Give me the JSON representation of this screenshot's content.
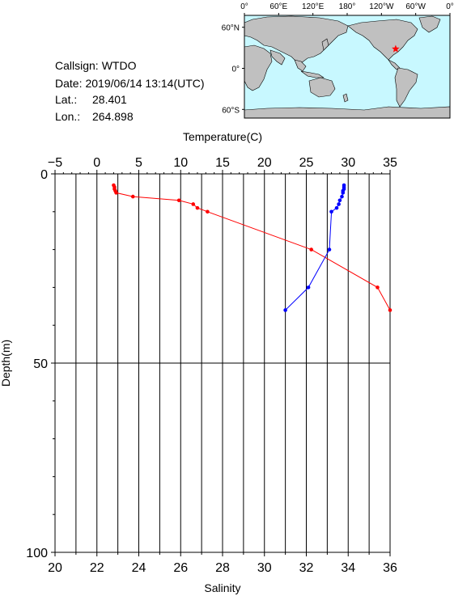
{
  "station": {
    "callsign_label": "Callsign:",
    "callsign": "WTDO",
    "date_label": "Date:",
    "date": "2019/06/14 13:14(UTC)",
    "lat_label": "Lat.:",
    "lat": "28.401",
    "lon_label": "Lon.:",
    "lon": "264.898"
  },
  "map": {
    "top_ticks": [
      "0°",
      "60°E",
      "120°E",
      "180°",
      "120°W",
      "60°W",
      "0°"
    ],
    "left_ticks": [
      "60°N",
      "0°",
      "60°S"
    ],
    "ocean_color": "#c8f8ff",
    "land_color": "#c0c0c0",
    "marker": {
      "label": "station-star",
      "lon": 264.898,
      "lat": 28.401,
      "color": "#ff0000"
    }
  },
  "chart_data": {
    "type": "line",
    "x_top": {
      "label": "Temperature(C)",
      "range": [
        -5,
        35
      ],
      "ticks": [
        "-5",
        "0",
        "5",
        "10",
        "15",
        "20",
        "25",
        "30",
        "35"
      ]
    },
    "x_bottom": {
      "label": "Salinity",
      "range": [
        20,
        36
      ],
      "ticks": [
        "20",
        "22",
        "24",
        "26",
        "28",
        "30",
        "32",
        "34",
        "36"
      ]
    },
    "y": {
      "label": "Depth(m)",
      "range": [
        0,
        100
      ],
      "inverted": true,
      "ticks": [
        "0",
        "50",
        "100"
      ]
    },
    "grid": true,
    "series": [
      {
        "axis": "temperature",
        "color": "#ff0000",
        "points": [
          [
            2.0,
            3.0
          ],
          [
            2.1,
            3.5
          ],
          [
            2.1,
            4.0
          ],
          [
            2.2,
            4.5
          ],
          [
            2.3,
            5.0
          ],
          [
            4.3,
            6.0
          ],
          [
            9.8,
            7.0
          ],
          [
            11.5,
            8.0
          ],
          [
            12.0,
            9.0
          ],
          [
            13.2,
            10.0
          ],
          [
            25.6,
            20.0
          ],
          [
            33.5,
            30.0
          ],
          [
            35.0,
            36.0
          ]
        ]
      },
      {
        "axis": "salinity",
        "color": "#0000ff",
        "points": [
          [
            33.8,
            3.0
          ],
          [
            33.8,
            3.5
          ],
          [
            33.8,
            4.0
          ],
          [
            33.75,
            4.5
          ],
          [
            33.75,
            5.0
          ],
          [
            33.7,
            6.0
          ],
          [
            33.6,
            7.0
          ],
          [
            33.55,
            8.0
          ],
          [
            33.45,
            9.0
          ],
          [
            33.2,
            10.0
          ],
          [
            33.1,
            20.0
          ],
          [
            32.1,
            30.0
          ],
          [
            31.0,
            36.0
          ]
        ]
      }
    ]
  }
}
